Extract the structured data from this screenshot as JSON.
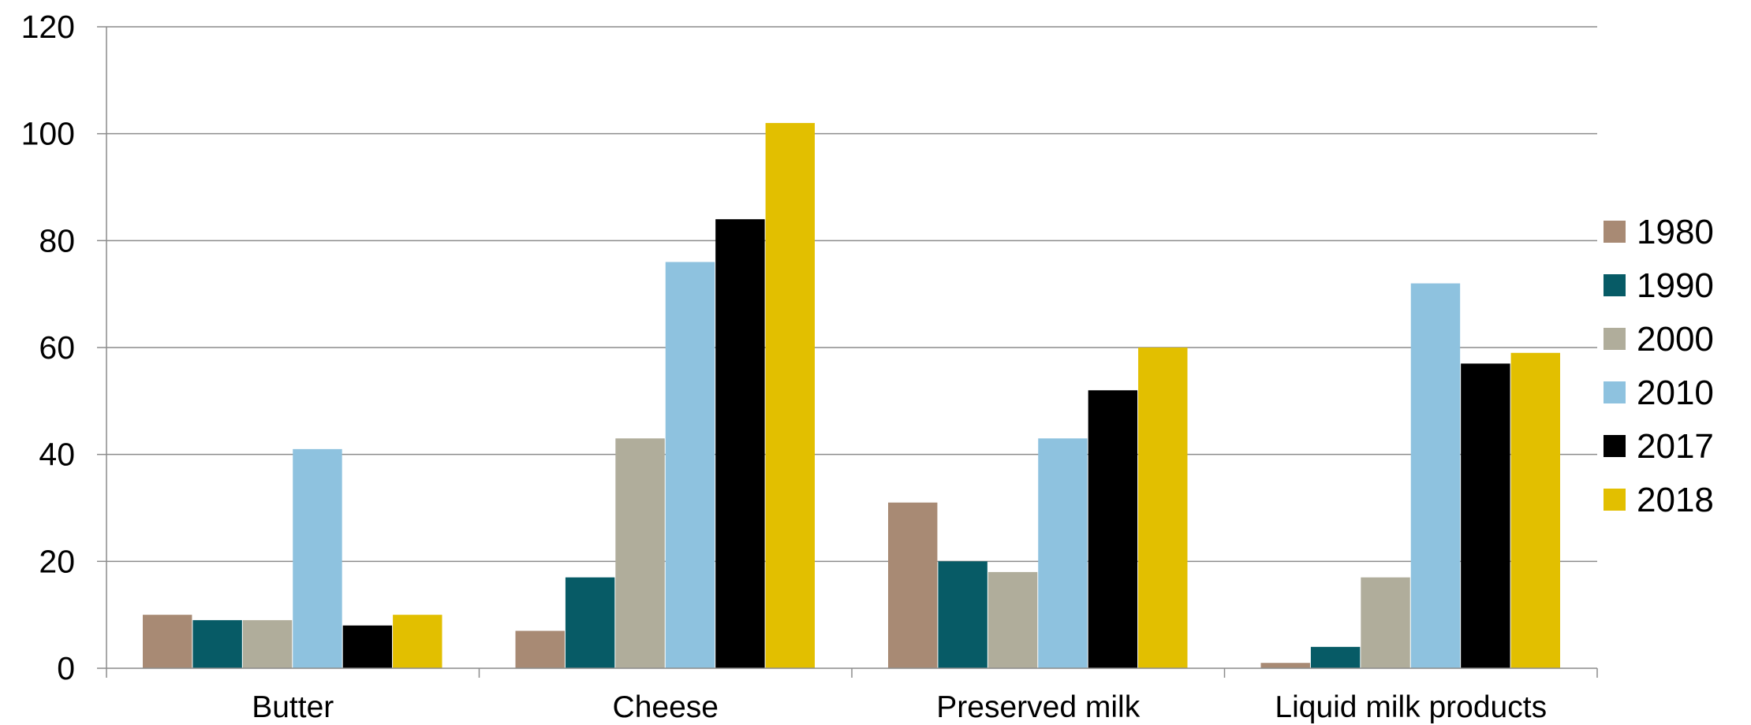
{
  "chart_data": {
    "type": "bar",
    "title": "",
    "xlabel": "",
    "ylabel": "",
    "categories": [
      "Butter",
      "Cheese",
      "Preserved milk",
      "Liquid milk products"
    ],
    "ylim": [
      0,
      120
    ],
    "yticks": [
      0,
      20,
      40,
      60,
      80,
      100,
      120
    ],
    "grid": true,
    "legend_position": "right",
    "series": [
      {
        "name": "1980",
        "color": "#a88a74",
        "values": [
          10,
          7,
          31,
          1
        ]
      },
      {
        "name": "1990",
        "color": "#075b66",
        "values": [
          9,
          17,
          20,
          4
        ]
      },
      {
        "name": "2000",
        "color": "#b0ad9b",
        "values": [
          9,
          43,
          18,
          17
        ]
      },
      {
        "name": "2010",
        "color": "#8ec2df",
        "values": [
          41,
          76,
          43,
          72
        ]
      },
      {
        "name": "2017",
        "color": "#000000",
        "values": [
          8,
          84,
          52,
          57
        ]
      },
      {
        "name": "2018",
        "color": "#e2bf00",
        "values": [
          10,
          102,
          60,
          59
        ]
      }
    ]
  }
}
